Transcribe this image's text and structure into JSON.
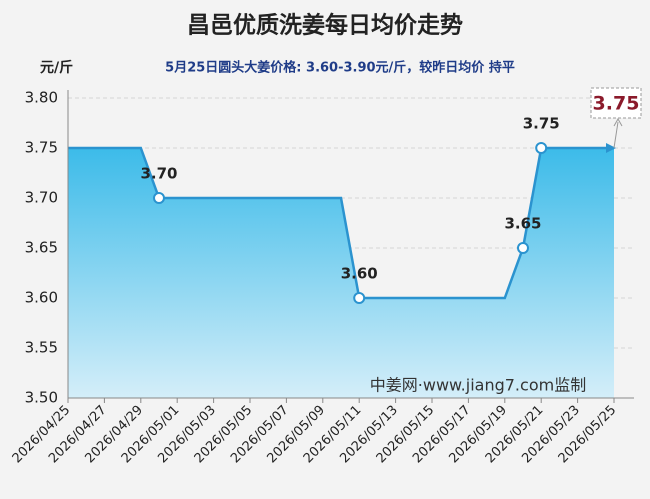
{
  "chart_data": {
    "type": "line",
    "title": "昌邑优质洗姜每日均价走势",
    "subtitle": "5月25日圆头大姜价格: 3.60-3.90元/斤，较昨日均价 持平",
    "y_axis_label": "元/斤",
    "watermark": "中姜网·www.jiang7.com监制",
    "latest_label": "3.75",
    "color": "#2b93cf",
    "grid": true,
    "categories": [
      "2026/04/25",
      null,
      "2026/04/27",
      null,
      "2026/04/29",
      null,
      "2026/05/01",
      null,
      "2026/05/03",
      null,
      "2026/05/05",
      null,
      "2026/05/07",
      null,
      "2026/05/09",
      null,
      "2026/05/11",
      null,
      "2026/05/13",
      null,
      "2026/05/15",
      null,
      "2026/05/17",
      null,
      "2026/05/19",
      null,
      "2026/05/21",
      null,
      "2026/05/23",
      null,
      "2026/05/25"
    ],
    "values": [
      3.75,
      3.75,
      3.75,
      3.75,
      3.75,
      3.7,
      3.7,
      3.7,
      3.7,
      3.7,
      3.7,
      3.7,
      3.7,
      3.7,
      3.7,
      3.7,
      3.6,
      3.6,
      3.6,
      3.6,
      3.6,
      3.6,
      3.6,
      3.6,
      3.6,
      3.65,
      3.75,
      3.75,
      3.75,
      3.75,
      3.75
    ],
    "value_labels": [
      null,
      null,
      null,
      null,
      null,
      "3.70",
      null,
      null,
      null,
      null,
      null,
      null,
      null,
      null,
      null,
      null,
      "3.60",
      null,
      null,
      null,
      null,
      null,
      null,
      null,
      null,
      "3.65",
      "3.75",
      null,
      null,
      null,
      null
    ],
    "ylim": [
      3.5,
      3.8
    ],
    "yticks": [
      {
        "value": 3.5,
        "label": "3.50"
      },
      {
        "value": 3.55,
        "label": "3.55"
      },
      {
        "value": 3.6,
        "label": "3.60"
      },
      {
        "value": 3.65,
        "label": "3.65"
      },
      {
        "value": 3.7,
        "label": "3.70"
      },
      {
        "value": 3.75,
        "label": "3.75"
      },
      {
        "value": 3.8,
        "label": "3.80"
      }
    ]
  }
}
